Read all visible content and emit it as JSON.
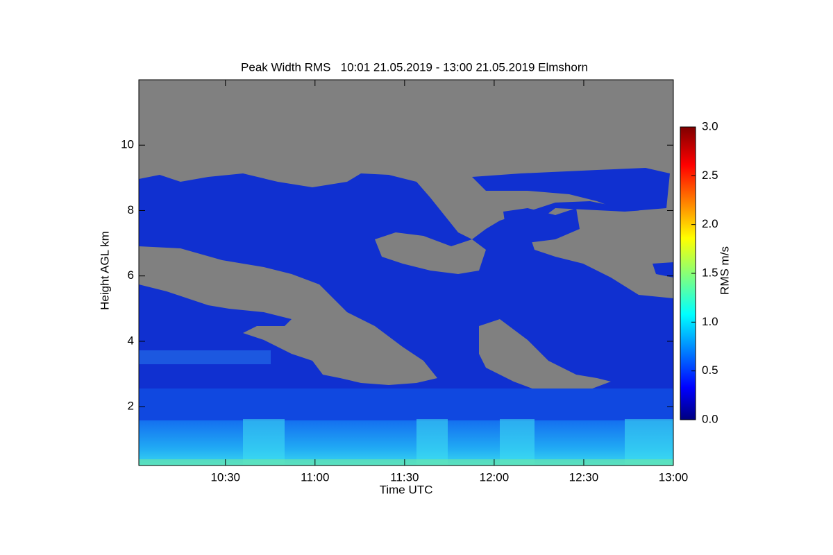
{
  "chart_data": {
    "type": "heatmap",
    "title": "Peak Width RMS   10:01 21.05.2019 - 13:00 21.05.2019 Elmshorn",
    "xlabel": "Time UTC",
    "ylabel": "Height AGL km",
    "xlim": [
      601,
      780
    ],
    "xticks": [
      {
        "value": 630,
        "label": "10:30"
      },
      {
        "value": 660,
        "label": "11:00"
      },
      {
        "value": 690,
        "label": "11:30"
      },
      {
        "value": 720,
        "label": "12:00"
      },
      {
        "value": 750,
        "label": "12:30"
      },
      {
        "value": 780,
        "label": "13:00"
      }
    ],
    "ylim": [
      0.2,
      12
    ],
    "yticks": [
      2,
      4,
      6,
      8,
      10
    ],
    "colorbar": {
      "label": "RMS m/s",
      "clim": [
        0,
        3
      ],
      "ticks": [
        {
          "value": 0,
          "label": "0.0"
        },
        {
          "value": 0.5,
          "label": "0.5"
        },
        {
          "value": 1,
          "label": "1.0"
        },
        {
          "value": 1.5,
          "label": "1.5"
        },
        {
          "value": 2,
          "label": "2.0"
        },
        {
          "value": 2.5,
          "label": "2.5"
        },
        {
          "value": 3,
          "label": "3.0"
        }
      ]
    }
  }
}
